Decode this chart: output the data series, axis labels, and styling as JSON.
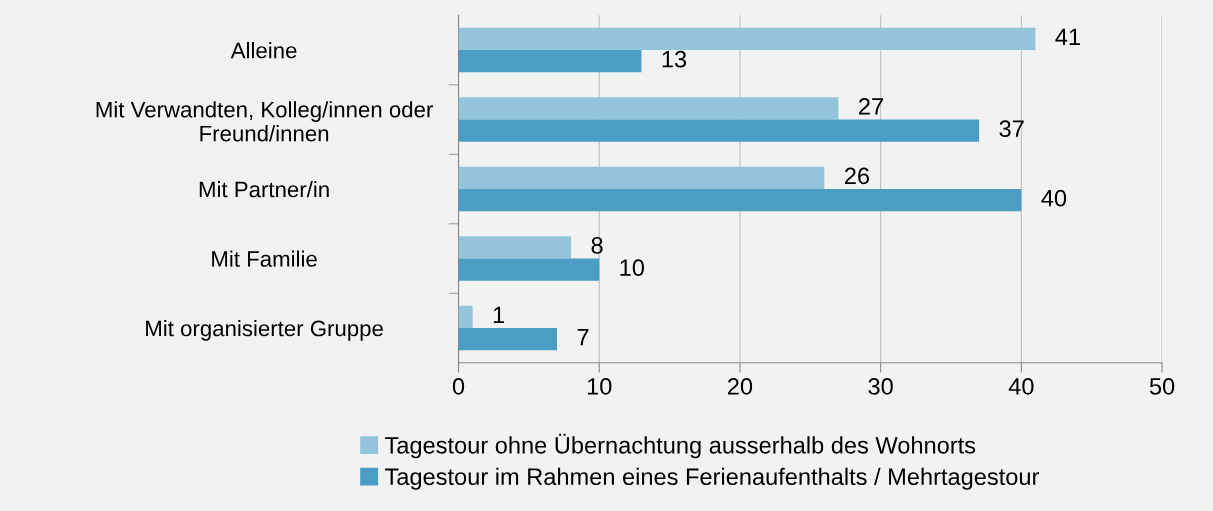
{
  "chart_data": {
    "type": "bar",
    "orientation": "horizontal",
    "categories": [
      "Alleine",
      "Mit Verwandten, Kolleg/innen oder\nFreund/innen",
      "Mit Partner/in",
      "Mit Familie",
      "Mit organisierter Gruppe"
    ],
    "series": [
      {
        "name": "Tagestour ohne Übernachtung ausserhalb des Wohnorts",
        "color": "#94c4dc",
        "values": [
          41,
          27,
          26,
          8,
          1
        ]
      },
      {
        "name": "Tagestour im Rahmen eines Ferienaufenthalts / Mehrtagestour",
        "color": "#4b9dc3",
        "values": [
          13,
          37,
          40,
          10,
          7
        ]
      }
    ],
    "xlim": [
      0,
      50
    ],
    "xticks": [
      0,
      10,
      20,
      30,
      40,
      50
    ],
    "grid": "x",
    "legend": "bottom",
    "data_labels": true
  }
}
